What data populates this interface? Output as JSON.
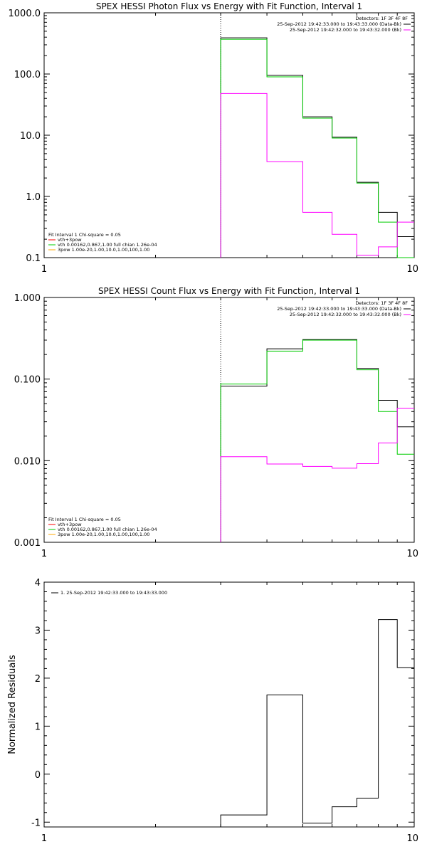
{
  "chart_data": [
    {
      "type": "line",
      "title": "SPEX HESSI Photon Flux vs Energy with Fit Function, Interval 1",
      "xlabel": "",
      "ylabel": "",
      "x_scale": "log",
      "y_scale": "log",
      "xlim": [
        1,
        10
      ],
      "ylim": [
        0.1,
        1000
      ],
      "x_ticks": [
        1,
        10
      ],
      "x_tick_labels": [
        "1",
        "10"
      ],
      "y_ticks": [
        0.1,
        1,
        10,
        100,
        1000
      ],
      "y_tick_labels": [
        "0.1",
        "1.0",
        "10.0",
        "100.0",
        "1000.0"
      ],
      "vline_x": 3,
      "legend_top": {
        "header": "Detectors: 1F 3F 4F 8F",
        "entries": [
          {
            "label": "25-Sep-2012 19:42:33.000 to 19:43:33.000 (Data-Bk)",
            "color": "#000000"
          },
          {
            "label": "25-Sep-2012 19:42:32.000 to 19:43:32.000 (Bk)",
            "color": "#ff00ff"
          }
        ]
      },
      "legend_bottom": {
        "header": "Fit Interval 1   Chi-square = 0.05",
        "entries": [
          {
            "label": "vth+3pow",
            "color": "#ff0000"
          },
          {
            "label": "vth 0.00162,0.867,1.00  full chian 1.26e-04",
            "color": "#00cc00"
          },
          {
            "label": "3pow 1.00e-20,1.00,10.0,1.00,100,1.00",
            "color": "#ffaa00"
          }
        ]
      },
      "series": [
        {
          "color": "#000000",
          "edges": [
            3,
            4,
            5,
            6,
            7,
            8,
            9,
            10
          ],
          "values": [
            390,
            95,
            20,
            9.3,
            1.7,
            0.55,
            0.22
          ]
        },
        {
          "color": "#00cc00",
          "edges": [
            3,
            4,
            5,
            6,
            7,
            8,
            9,
            10
          ],
          "values": [
            370,
            90,
            19,
            9.0,
            1.65,
            0.38,
            0.1
          ]
        },
        {
          "color": "#ff00ff",
          "edges": [
            3,
            4,
            5,
            6,
            7,
            8,
            9,
            10
          ],
          "values": [
            48,
            3.7,
            0.55,
            0.24,
            0.11,
            0.15,
            0.38
          ]
        }
      ]
    },
    {
      "type": "line",
      "title": "SPEX HESSI Count Flux vs Energy with Fit Function, Interval 1",
      "xlabel": "",
      "ylabel": "",
      "x_scale": "log",
      "y_scale": "log",
      "xlim": [
        1,
        10
      ],
      "ylim": [
        0.001,
        1
      ],
      "x_ticks": [
        1,
        10
      ],
      "x_tick_labels": [
        "1",
        "10"
      ],
      "y_ticks": [
        0.001,
        0.01,
        0.1,
        1
      ],
      "y_tick_labels": [
        "0.001",
        "0.010",
        "0.100",
        "1.000"
      ],
      "vline_x": 3,
      "legend_top": {
        "header": "Detectors: 1F 3F 4F 8F",
        "entries": [
          {
            "label": "25-Sep-2012 19:42:33.000 to 19:43:33.000 (Data-Bk)",
            "color": "#000000"
          },
          {
            "label": "25-Sep-2012 19:42:32.000 to 19:43:32.000 (Bk)",
            "color": "#ff00ff"
          }
        ]
      },
      "legend_bottom": {
        "header": "Fit Interval 1   Chi-square = 0.05",
        "entries": [
          {
            "label": "vth+3pow",
            "color": "#ff0000"
          },
          {
            "label": "vth 0.00162,0.867,1.00  full chian 1.26e-04",
            "color": "#00cc00"
          },
          {
            "label": "3pow 1.00e-20,1.00,10.0,1.00,100,1.00",
            "color": "#ffaa00"
          }
        ]
      },
      "series": [
        {
          "color": "#000000",
          "edges": [
            3,
            4,
            5,
            6,
            7,
            8,
            9,
            10
          ],
          "values": [
            0.082,
            0.235,
            0.305,
            0.305,
            0.135,
            0.055,
            0.026
          ]
        },
        {
          "color": "#00cc00",
          "edges": [
            3,
            4,
            5,
            6,
            7,
            8,
            9,
            10
          ],
          "values": [
            0.087,
            0.22,
            0.3,
            0.3,
            0.13,
            0.04,
            0.012
          ]
        },
        {
          "color": "#ff00ff",
          "edges": [
            3,
            4,
            5,
            6,
            7,
            8,
            9,
            10
          ],
          "values": [
            0.0112,
            0.0091,
            0.0085,
            0.0081,
            0.0092,
            0.0165,
            0.044
          ]
        }
      ]
    },
    {
      "type": "line",
      "title": "",
      "xlabel": "",
      "ylabel": "Normalized Residuals",
      "x_scale": "log",
      "y_scale": "linear",
      "xlim": [
        1,
        10
      ],
      "ylim": [
        -1.1,
        4
      ],
      "x_ticks": [
        1,
        10
      ],
      "x_tick_labels": [
        "1",
        "10"
      ],
      "y_ticks": [
        -1,
        0,
        1,
        2,
        3,
        4
      ],
      "y_tick_labels": [
        "-1",
        "0",
        "1",
        "2",
        "3",
        "4"
      ],
      "legend_top": {
        "header": "",
        "entries": [
          {
            "label": "1. 25-Sep-2012 19:42:33.000 to 19:43:33.000",
            "color": "#000000"
          }
        ]
      },
      "series": [
        {
          "color": "#000000",
          "edges": [
            3,
            4,
            5,
            6,
            7,
            8,
            9,
            10
          ],
          "values": [
            -0.85,
            1.65,
            -1.02,
            -0.68,
            -0.5,
            3.22,
            2.22
          ]
        }
      ]
    }
  ]
}
